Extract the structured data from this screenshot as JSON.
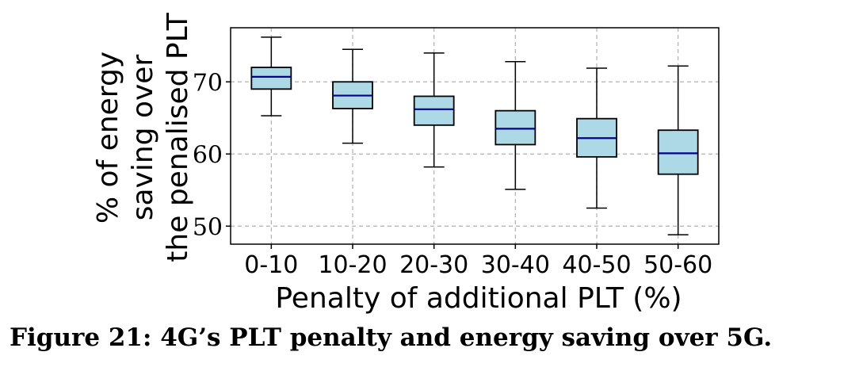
{
  "caption": "Figure 21: 4G’s PLT penalty and energy saving over 5G.",
  "chart_data": {
    "type": "box",
    "categories": [
      "0-10",
      "10-20",
      "20-30",
      "30-40",
      "40-50",
      "50-60"
    ],
    "boxes": [
      {
        "whisker_low": 65.3,
        "q1": 69.0,
        "median": 70.7,
        "q3": 72.0,
        "whisker_high": 76.2
      },
      {
        "whisker_low": 61.5,
        "q1": 66.3,
        "median": 68.1,
        "q3": 70.0,
        "whisker_high": 74.5
      },
      {
        "whisker_low": 58.2,
        "q1": 64.0,
        "median": 66.2,
        "q3": 68.0,
        "whisker_high": 74.0
      },
      {
        "whisker_low": 55.1,
        "q1": 61.3,
        "median": 63.5,
        "q3": 66.0,
        "whisker_high": 72.8
      },
      {
        "whisker_low": 52.5,
        "q1": 59.6,
        "median": 62.2,
        "q3": 64.9,
        "whisker_high": 71.9
      },
      {
        "whisker_low": 48.8,
        "q1": 57.2,
        "median": 60.1,
        "q3": 63.3,
        "whisker_high": 72.2
      }
    ],
    "xlabel": "Penalty of additional PLT (%)",
    "ylabel_lines": [
      "% of energy",
      "saving over",
      "the penalised PLT"
    ],
    "yticks": [
      50,
      60,
      70
    ],
    "ylim": [
      47.5,
      77.5
    ],
    "grid": true,
    "colors": {
      "box_fill": "#add8e6",
      "median": "#00008b",
      "edge": "#000000",
      "grid": "#b0b0b0"
    }
  }
}
